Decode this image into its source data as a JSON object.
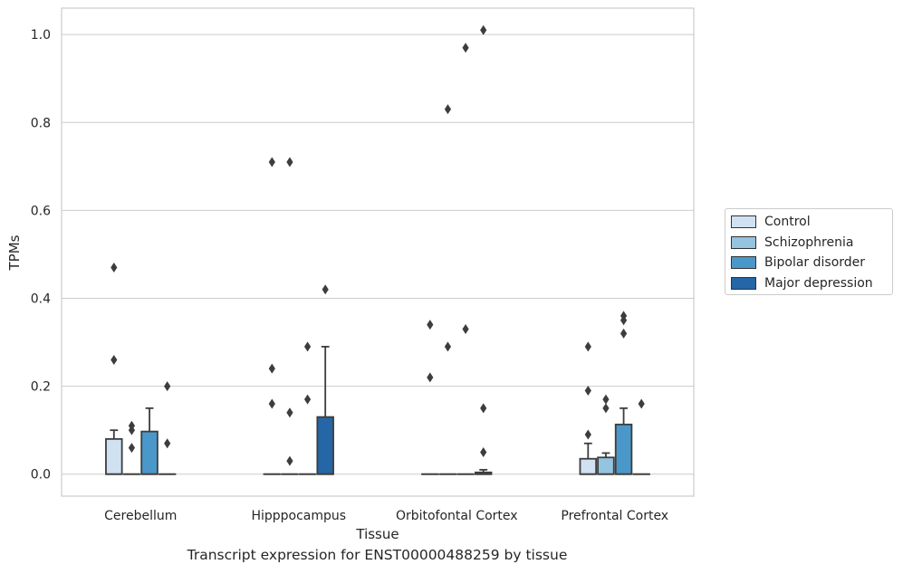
{
  "caption": "Transcript expression for ENST00000488259 by tissue",
  "colors": {
    "Control": "#d0e1f2",
    "Schizophrenia": "#94c4df",
    "Bipolar disorder": "#4a98c9",
    "Major depression": "#2466a6"
  },
  "chart_data": {
    "type": "box",
    "xlabel": "Tissue",
    "ylabel": "TPMs",
    "ylim": [
      -0.05,
      1.06
    ],
    "yticks": [
      "0.0",
      "0.2",
      "0.4",
      "0.6",
      "0.8",
      "1.0"
    ],
    "grid": true,
    "legend_position": "right",
    "categories": [
      "Cerebellum",
      "Hipppocampus",
      "Orbitofontal Cortex",
      "Prefrontal Cortex"
    ],
    "series": [
      {
        "name": "Control",
        "boxes": [
          {
            "q1": 0.0,
            "median": 0.0,
            "q3": 0.08,
            "whisker_low": 0.0,
            "whisker_high": 0.1,
            "outliers": [
              0.47,
              0.26
            ]
          },
          {
            "q1": 0.0,
            "median": 0.0,
            "q3": 0.0,
            "whisker_low": 0.0,
            "whisker_high": 0.0,
            "outliers": [
              0.24,
              0.16,
              0.71
            ]
          },
          {
            "q1": 0.0,
            "median": 0.0,
            "q3": 0.0,
            "whisker_low": 0.0,
            "whisker_high": 0.0,
            "outliers": [
              0.34,
              0.22
            ]
          },
          {
            "q1": 0.0,
            "median": 0.0,
            "q3": 0.035,
            "whisker_low": 0.0,
            "whisker_high": 0.07,
            "outliers": [
              0.29,
              0.19,
              0.09
            ]
          }
        ]
      },
      {
        "name": "Schizophrenia",
        "boxes": [
          {
            "q1": 0.0,
            "median": 0.0,
            "q3": 0.0,
            "whisker_low": 0.0,
            "whisker_high": 0.0,
            "outliers": [
              0.11,
              0.1,
              0.06
            ]
          },
          {
            "q1": 0.0,
            "median": 0.0,
            "q3": 0.0,
            "whisker_low": 0.0,
            "whisker_high": 0.0,
            "outliers": [
              0.14,
              0.03,
              0.71
            ]
          },
          {
            "q1": 0.0,
            "median": 0.0,
            "q3": 0.0,
            "whisker_low": 0.0,
            "whisker_high": 0.0,
            "outliers": [
              0.29,
              0.83
            ]
          },
          {
            "q1": 0.0,
            "median": 0.0,
            "q3": 0.038,
            "whisker_low": 0.0,
            "whisker_high": 0.048,
            "outliers": [
              0.17,
              0.15
            ]
          }
        ]
      },
      {
        "name": "Bipolar disorder",
        "boxes": [
          {
            "q1": 0.0,
            "median": 0.0,
            "q3": 0.097,
            "whisker_low": 0.0,
            "whisker_high": 0.15,
            "outliers": []
          },
          {
            "q1": 0.0,
            "median": 0.0,
            "q3": 0.0,
            "whisker_low": 0.0,
            "whisker_high": 0.0,
            "outliers": [
              0.29,
              0.17
            ]
          },
          {
            "q1": 0.0,
            "median": 0.0,
            "q3": 0.0,
            "whisker_low": 0.0,
            "whisker_high": 0.0,
            "outliers": [
              0.33,
              0.97
            ]
          },
          {
            "q1": 0.0,
            "median": 0.0,
            "q3": 0.113,
            "whisker_low": 0.0,
            "whisker_high": 0.15,
            "outliers": [
              0.36,
              0.35,
              0.32
            ]
          }
        ]
      },
      {
        "name": "Major depression",
        "boxes": [
          {
            "q1": 0.0,
            "median": 0.0,
            "q3": 0.0,
            "whisker_low": 0.0,
            "whisker_high": 0.0,
            "outliers": [
              0.2,
              0.07
            ]
          },
          {
            "q1": 0.0,
            "median": 0.0,
            "q3": 0.13,
            "whisker_low": 0.0,
            "whisker_high": 0.29,
            "outliers": [
              0.42
            ]
          },
          {
            "q1": 0.0,
            "median": 0.0,
            "q3": 0.004,
            "whisker_low": 0.0,
            "whisker_high": 0.01,
            "outliers": [
              0.15,
              0.05,
              1.01
            ]
          },
          {
            "q1": 0.0,
            "median": 0.0,
            "q3": 0.0,
            "whisker_low": 0.0,
            "whisker_high": 0.0,
            "outliers": [
              0.16
            ]
          }
        ]
      }
    ]
  }
}
